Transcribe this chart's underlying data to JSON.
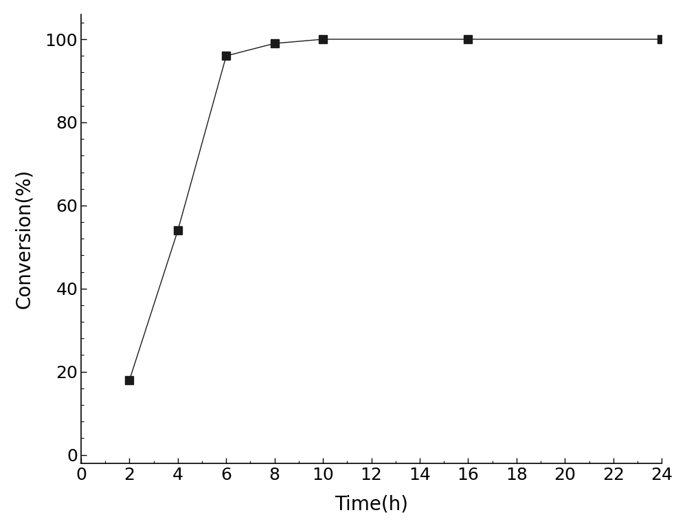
{
  "x": [
    2,
    4,
    6,
    8,
    10,
    16,
    24
  ],
  "y": [
    18,
    54,
    96,
    99,
    100,
    100,
    100
  ],
  "xlabel": "Time(h)",
  "ylabel": "Conversion(%)",
  "xlim": [
    0,
    24
  ],
  "ylim": [
    -2,
    106
  ],
  "xticks": [
    0,
    2,
    4,
    6,
    8,
    10,
    12,
    14,
    16,
    18,
    20,
    22,
    24
  ],
  "yticks": [
    0,
    20,
    40,
    60,
    80,
    100
  ],
  "x_minor_tick_interval": 1,
  "y_minor_tick_interval": 4,
  "marker": "s",
  "marker_color": "#1a1a1a",
  "line_color": "#1a1a1a",
  "marker_size": 8,
  "line_width": 1.0,
  "background_color": "#ffffff",
  "xlabel_fontsize": 20,
  "ylabel_fontsize": 20,
  "tick_fontsize": 18,
  "figsize": [
    10.0,
    7.68
  ]
}
